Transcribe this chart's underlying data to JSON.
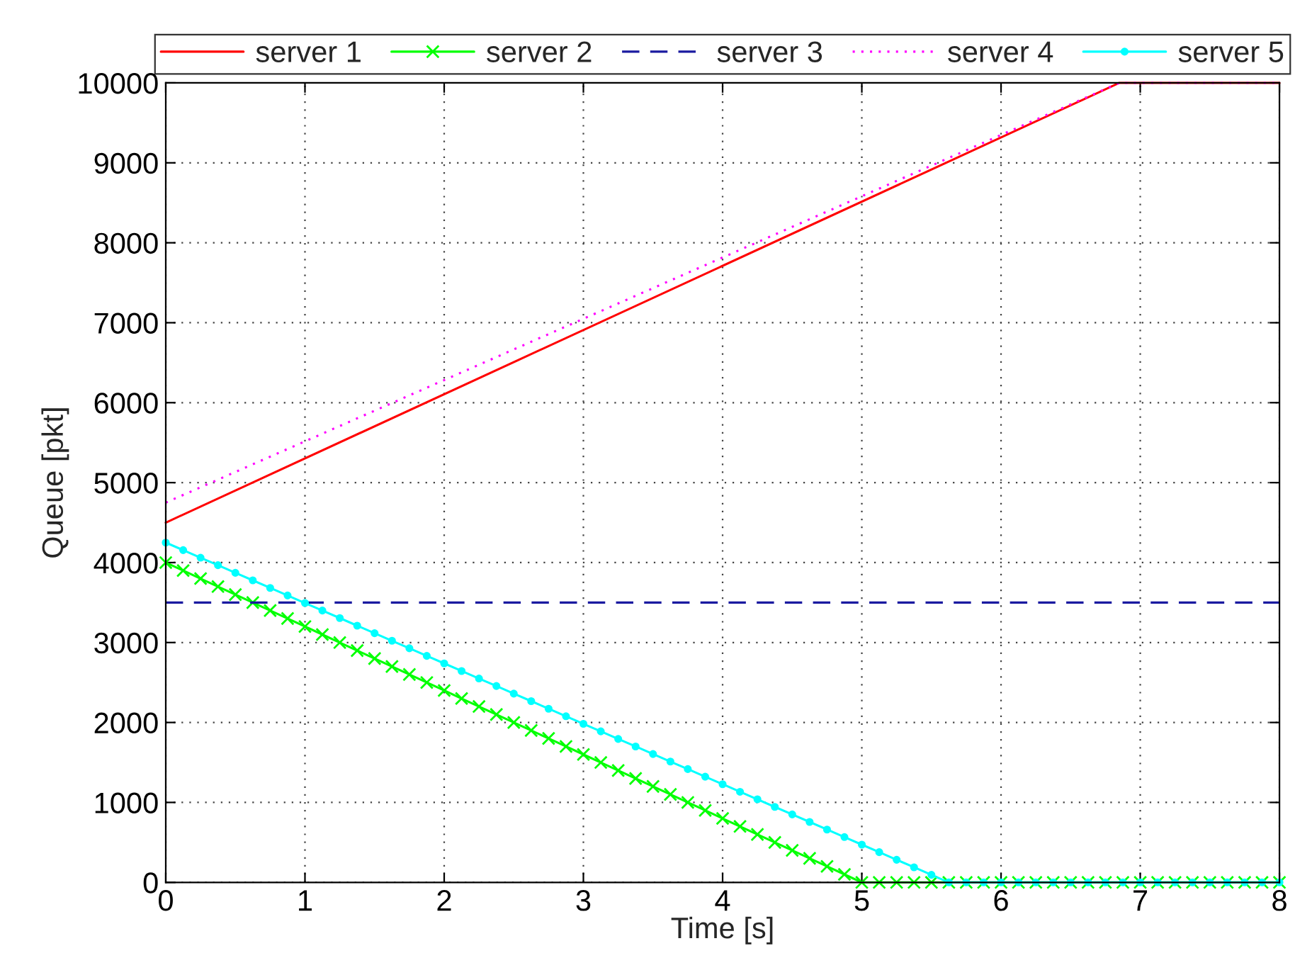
{
  "chart_data": {
    "type": "line",
    "xlabel": "Time [s]",
    "ylabel": "Queue [pkt]",
    "xlim": [
      0,
      8
    ],
    "xticks": [
      0,
      1,
      2,
      3,
      4,
      5,
      6,
      7,
      8
    ],
    "ylim": [
      0,
      10000
    ],
    "yticks": [
      0,
      1000,
      2000,
      3000,
      4000,
      5000,
      6000,
      7000,
      8000,
      9000,
      10000
    ],
    "grid": true,
    "legend": "top",
    "x": [
      0,
      0.125,
      0.25,
      0.375,
      0.5,
      0.625,
      0.75,
      0.875,
      1,
      1.125,
      1.25,
      1.375,
      1.5,
      1.625,
      1.75,
      1.875,
      2,
      2.125,
      2.25,
      2.375,
      2.5,
      2.625,
      2.75,
      2.875,
      3,
      3.125,
      3.25,
      3.375,
      3.5,
      3.625,
      3.75,
      3.875,
      4,
      4.125,
      4.25,
      4.375,
      4.5,
      4.625,
      4.75,
      4.875,
      5,
      5.125,
      5.25,
      5.375,
      5.5,
      5.625,
      5.75,
      5.875,
      6,
      6.125,
      6.25,
      6.375,
      6.5,
      6.625,
      6.75,
      6.875,
      7,
      7.125,
      7.25,
      7.375,
      7.5,
      7.625,
      7.75,
      7.875,
      8
    ],
    "series": [
      {
        "name": "server 1",
        "color": "#ff0000",
        "line_style": "solid",
        "marker": "none",
        "x": [
          0,
          6.85,
          8
        ],
        "values": [
          4500,
          10000,
          10000
        ]
      },
      {
        "name": "server 2",
        "color": "#00ff00",
        "line_style": "solid",
        "marker": "cross",
        "values": [
          4000,
          3900,
          3800,
          3700,
          3600,
          3500,
          3400,
          3300,
          3200,
          3100,
          3000,
          2900,
          2800,
          2700,
          2600,
          2500,
          2400,
          2300,
          2200,
          2100,
          2000,
          1900,
          1800,
          1700,
          1600,
          1500,
          1400,
          1300,
          1200,
          1100,
          1000,
          900,
          800,
          700,
          600,
          500,
          400,
          300,
          200,
          100,
          0,
          0,
          0,
          0,
          0,
          0,
          0,
          0,
          0,
          0,
          0,
          0,
          0,
          0,
          0,
          0,
          0,
          0,
          0,
          0,
          0,
          0,
          0,
          0,
          0
        ]
      },
      {
        "name": "server 3",
        "color": "#1a1aa0",
        "line_style": "dashed",
        "marker": "none",
        "x": [
          0,
          8
        ],
        "values": [
          3500,
          3500
        ]
      },
      {
        "name": "server 4",
        "color": "#ff00ff",
        "line_style": "dotted",
        "marker": "none",
        "x": [
          0,
          6.85,
          8
        ],
        "values": [
          4750,
          10000,
          10000
        ]
      },
      {
        "name": "server 5",
        "color": "#00ffff",
        "line_style": "solid",
        "marker": "circle",
        "values": [
          4250,
          4156,
          4061,
          3967,
          3872,
          3778,
          3683,
          3589,
          3494,
          3400,
          3306,
          3211,
          3117,
          3022,
          2928,
          2833,
          2739,
          2644,
          2550,
          2456,
          2361,
          2267,
          2172,
          2078,
          1983,
          1889,
          1794,
          1700,
          1606,
          1511,
          1417,
          1322,
          1228,
          1133,
          1039,
          944,
          850,
          756,
          661,
          567,
          472,
          378,
          283,
          189,
          94,
          0,
          0,
          0,
          0,
          0,
          0,
          0,
          0,
          0,
          0,
          0,
          0,
          0,
          0,
          0,
          0,
          0,
          0,
          0,
          0
        ]
      }
    ]
  }
}
